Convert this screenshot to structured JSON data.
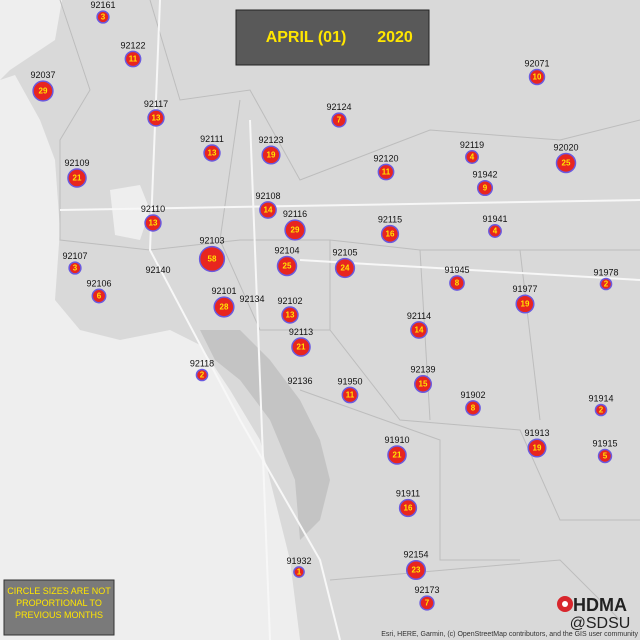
{
  "header": {
    "month": "APRIL (01)",
    "year": "2020"
  },
  "markers": [
    {
      "zip": "92161",
      "count": 3
    },
    {
      "zip": "92122",
      "count": 11
    },
    {
      "zip": "92037",
      "count": 29
    },
    {
      "zip": "92117",
      "count": 13
    },
    {
      "zip": "92124",
      "count": 7
    },
    {
      "zip": "92111",
      "count": 13
    },
    {
      "zip": "92123",
      "count": 19
    },
    {
      "zip": "92109",
      "count": 21
    },
    {
      "zip": "92120",
      "count": 11
    },
    {
      "zip": "92119",
      "count": 4
    },
    {
      "zip": "92020",
      "count": 25
    },
    {
      "zip": "91942",
      "count": 9
    },
    {
      "zip": "92071",
      "count": 10
    },
    {
      "zip": "92108",
      "count": 14
    },
    {
      "zip": "92116",
      "count": 29
    },
    {
      "zip": "92110",
      "count": 13
    },
    {
      "zip": "92115",
      "count": 16
    },
    {
      "zip": "91941",
      "count": 4
    },
    {
      "zip": "92103",
      "count": 58
    },
    {
      "zip": "92104",
      "count": 25
    },
    {
      "zip": "92105",
      "count": 24
    },
    {
      "zip": "92107",
      "count": 3
    },
    {
      "zip": "92140"
    },
    {
      "zip": "92106",
      "count": 6
    },
    {
      "zip": "91945",
      "count": 8
    },
    {
      "zip": "91978",
      "count": 2
    },
    {
      "zip": "92101",
      "count": 28
    },
    {
      "zip": "92134"
    },
    {
      "zip": "92102",
      "count": 13
    },
    {
      "zip": "91977",
      "count": 19
    },
    {
      "zip": "92114",
      "count": 14
    },
    {
      "zip": "92113",
      "count": 21
    },
    {
      "zip": "92118",
      "count": 2
    },
    {
      "zip": "92136"
    },
    {
      "zip": "92139",
      "count": 15
    },
    {
      "zip": "91950",
      "count": 11
    },
    {
      "zip": "91902",
      "count": 8
    },
    {
      "zip": "91914",
      "count": 2
    },
    {
      "zip": "91913",
      "count": 19
    },
    {
      "zip": "91915",
      "count": 5
    },
    {
      "zip": "91910",
      "count": 21
    },
    {
      "zip": "91911",
      "count": 16
    },
    {
      "zip": "91932",
      "count": 1
    },
    {
      "zip": "92154",
      "count": 23
    },
    {
      "zip": "92173",
      "count": 7
    }
  ],
  "note": "CIRCLE SIZES ARE NOT PROPORTIONAL TO PREVIOUS MONTHS",
  "logo": {
    "name": "HDMA",
    "org": "@SDSU"
  },
  "attribution": "Esri, HERE, Garmin, (c) OpenStreetMap contributors, and the GIS user community"
}
